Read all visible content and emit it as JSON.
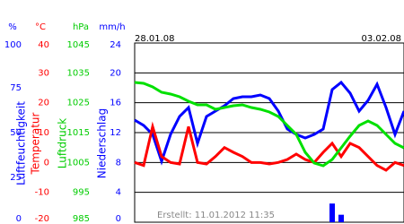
{
  "chart_data": {
    "type": "line",
    "date_start": "28.01.08",
    "date_end": "03.02.08",
    "footer": "Erstellt: 11.01.2012 11:35",
    "xlim": [
      0,
      30
    ],
    "x": [
      0,
      1,
      2,
      3,
      4,
      5,
      6,
      7,
      8,
      9,
      10,
      11,
      12,
      13,
      14,
      15,
      16,
      17,
      18,
      19,
      20,
      21,
      22,
      23,
      24,
      25,
      26,
      27,
      28,
      29,
      30
    ],
    "axes": [
      {
        "unit": "%",
        "label": "Luftfeuchtigkeit",
        "color": "#0000ff",
        "lim": [
          0,
          100
        ],
        "ticks": [
          0,
          25,
          50,
          75,
          100
        ]
      },
      {
        "unit": "°C",
        "label": "Temperatur",
        "color": "#ff0000",
        "lim": [
          -20,
          40
        ],
        "ticks": [
          -20,
          -10,
          0,
          10,
          20,
          30,
          40
        ]
      },
      {
        "unit": "hPa",
        "label": "Luftdruck",
        "color": "#00cc00",
        "lim": [
          985,
          1045
        ],
        "ticks": [
          985,
          995,
          1005,
          1015,
          1025,
          1035,
          1045
        ]
      },
      {
        "unit": "mm/h",
        "label": "Niederschlag",
        "color": "#0000ff",
        "lim": [
          0,
          24
        ],
        "ticks": [
          0,
          4,
          8,
          12,
          16,
          20,
          24
        ]
      }
    ],
    "grid": true,
    "series": [
      {
        "kind": "line",
        "axis": 0,
        "color": "#0000ff",
        "values": [
          57,
          54,
          49,
          34,
          49,
          59,
          64,
          44,
          59,
          62,
          65,
          69,
          70,
          70,
          71,
          69,
          62,
          52,
          49,
          47,
          49,
          52,
          74,
          78,
          72,
          62,
          68,
          77,
          64,
          49,
          62
        ]
      },
      {
        "kind": "line",
        "axis": 1,
        "color": "#ff0000",
        "values": [
          0,
          -1,
          12,
          2,
          0,
          -0.5,
          12,
          0,
          -0.5,
          2,
          5,
          3.4,
          2,
          0,
          0,
          -0.5,
          0,
          1,
          2.8,
          1,
          0,
          3.4,
          6.4,
          2,
          6.4,
          5,
          2,
          -1,
          -2.6,
          0,
          -1
        ]
      },
      {
        "kind": "line",
        "axis": 2,
        "color": "#00e000",
        "values": [
          1031.8,
          1031.5,
          1030.3,
          1028.5,
          1027.9,
          1027,
          1025.5,
          1024.3,
          1024.3,
          1022.8,
          1023.4,
          1024,
          1024.3,
          1023.4,
          1022.8,
          1021.9,
          1020.4,
          1017.4,
          1014.4,
          1008.4,
          1004.8,
          1003.9,
          1006,
          1009.9,
          1013.8,
          1017.4,
          1018.9,
          1017.4,
          1014.4,
          1011.4,
          1009.9
        ]
      },
      {
        "kind": "bar",
        "axis": 3,
        "color": "#0000ff",
        "values": [
          0,
          0,
          0,
          0,
          0,
          0,
          0,
          0,
          0,
          0,
          0,
          0,
          0,
          0,
          0,
          0,
          0,
          0,
          0,
          0,
          0,
          0,
          2.5,
          1,
          0,
          0,
          0,
          0,
          0,
          0,
          0
        ]
      }
    ]
  }
}
